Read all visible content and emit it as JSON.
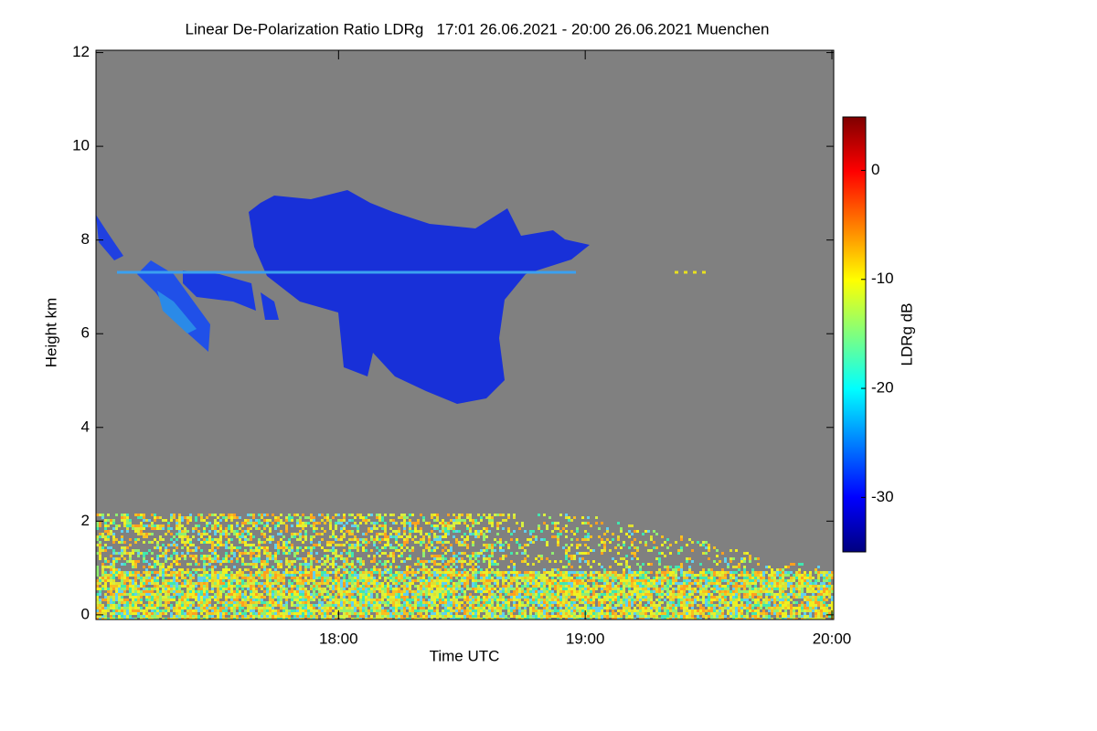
{
  "chart_data": {
    "type": "heatmap",
    "title": "Linear De-Polarization Ratio LDRg   17:01 26.06.2021 - 20:00 26.06.2021 Muenchen",
    "xlabel": "Time UTC",
    "ylabel": "Height km",
    "xlim": [
      17.0167,
      20.0074
    ],
    "xticks": [
      {
        "value": 18,
        "label": "18:00"
      },
      {
        "value": 19,
        "label": "19:00"
      },
      {
        "value": 20,
        "label": "20:00"
      }
    ],
    "ylim": [
      -0.1,
      12.05
    ],
    "yticks": [
      0,
      2,
      4,
      6,
      8,
      10,
      12
    ],
    "colorbar": {
      "label": "LDRg dB",
      "lim": [
        -35,
        4.9
      ],
      "ticks": [
        0,
        -10,
        -20,
        -30
      ],
      "colors": [
        "#00007f",
        "#0000ff",
        "#007fff",
        "#00ffff",
        "#7fff7f",
        "#ffff00",
        "#ff7f00",
        "#ff0000",
        "#7f0000"
      ]
    }
  }
}
